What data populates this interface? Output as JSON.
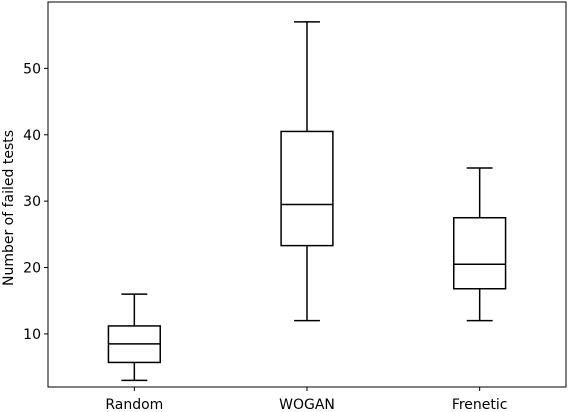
{
  "chart_data": {
    "type": "box",
    "title": "",
    "xlabel": "",
    "ylabel": "Number of failed tests",
    "ylim": [
      2,
      60
    ],
    "yticks": [
      10,
      20,
      30,
      40,
      50
    ],
    "grid": false,
    "categories": [
      "Random",
      "WOGAN",
      "Frenetic"
    ],
    "boxes": [
      {
        "category": "Random",
        "whisker_low": 3,
        "q1": 5.7,
        "median": 8.5,
        "q3": 11.2,
        "whisker_high": 16
      },
      {
        "category": "WOGAN",
        "whisker_low": 12,
        "q1": 23.3,
        "median": 29.5,
        "q3": 40.5,
        "whisker_high": 57
      },
      {
        "category": "Frenetic",
        "whisker_low": 12,
        "q1": 16.8,
        "median": 20.5,
        "q3": 27.5,
        "whisker_high": 35
      }
    ]
  }
}
